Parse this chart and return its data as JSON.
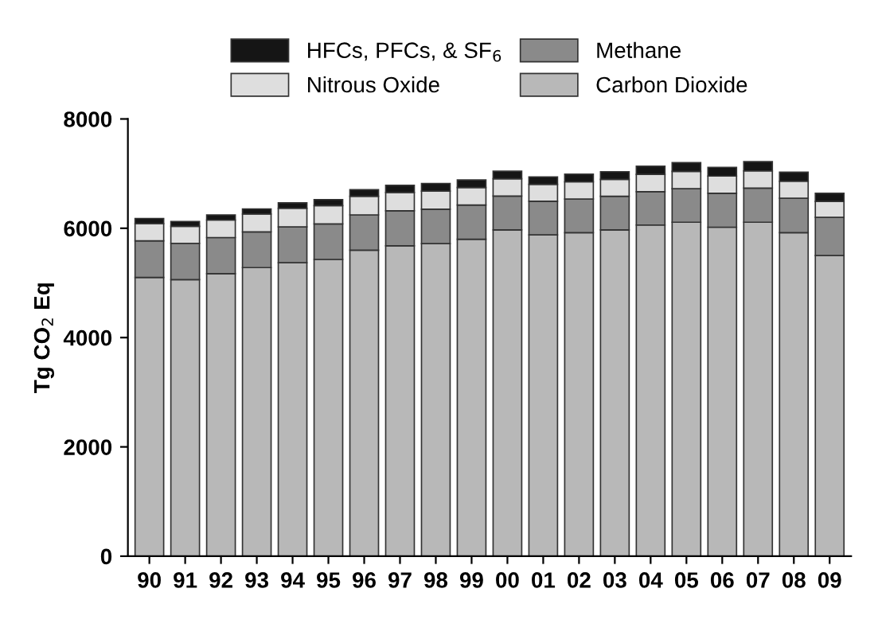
{
  "chart_data": {
    "type": "bar",
    "stacked": true,
    "ylabel": "Tg CO$_{2}$ Eq",
    "categories": [
      "90",
      "91",
      "92",
      "93",
      "94",
      "95",
      "96",
      "97",
      "98",
      "99",
      "00",
      "01",
      "02",
      "03",
      "04",
      "05",
      "06",
      "07",
      "08",
      "09"
    ],
    "series": [
      {
        "name": "Carbon Dioxide",
        "color": "#b8b8b8",
        "values": [
          5100,
          5060,
          5170,
          5280,
          5370,
          5430,
          5600,
          5680,
          5720,
          5800,
          5970,
          5880,
          5920,
          5970,
          6060,
          6110,
          6020,
          6110,
          5920,
          5500
        ]
      },
      {
        "name": "Methane",
        "color": "#8a8a8a",
        "values": [
          670,
          665,
          660,
          655,
          655,
          650,
          645,
          640,
          630,
          625,
          620,
          615,
          615,
          615,
          610,
          615,
          620,
          625,
          630,
          700
        ]
      },
      {
        "name": "Nitrous Oxide",
        "color": "#dedede",
        "values": [
          315,
          310,
          320,
          325,
          340,
          335,
          340,
          335,
          330,
          320,
          315,
          310,
          315,
          310,
          315,
          315,
          315,
          315,
          310,
          290
        ]
      },
      {
        "name": "HFCs, PFCs, & SF$_{6}$",
        "color": "#151515",
        "values": [
          95,
          90,
          95,
          95,
          100,
          110,
          120,
          130,
          140,
          140,
          140,
          135,
          140,
          140,
          150,
          160,
          160,
          170,
          165,
          150
        ]
      }
    ],
    "ylim": [
      0,
      8000
    ],
    "yticks": [
      0,
      2000,
      4000,
      6000,
      8000
    ],
    "grid": false,
    "legend": "top"
  }
}
